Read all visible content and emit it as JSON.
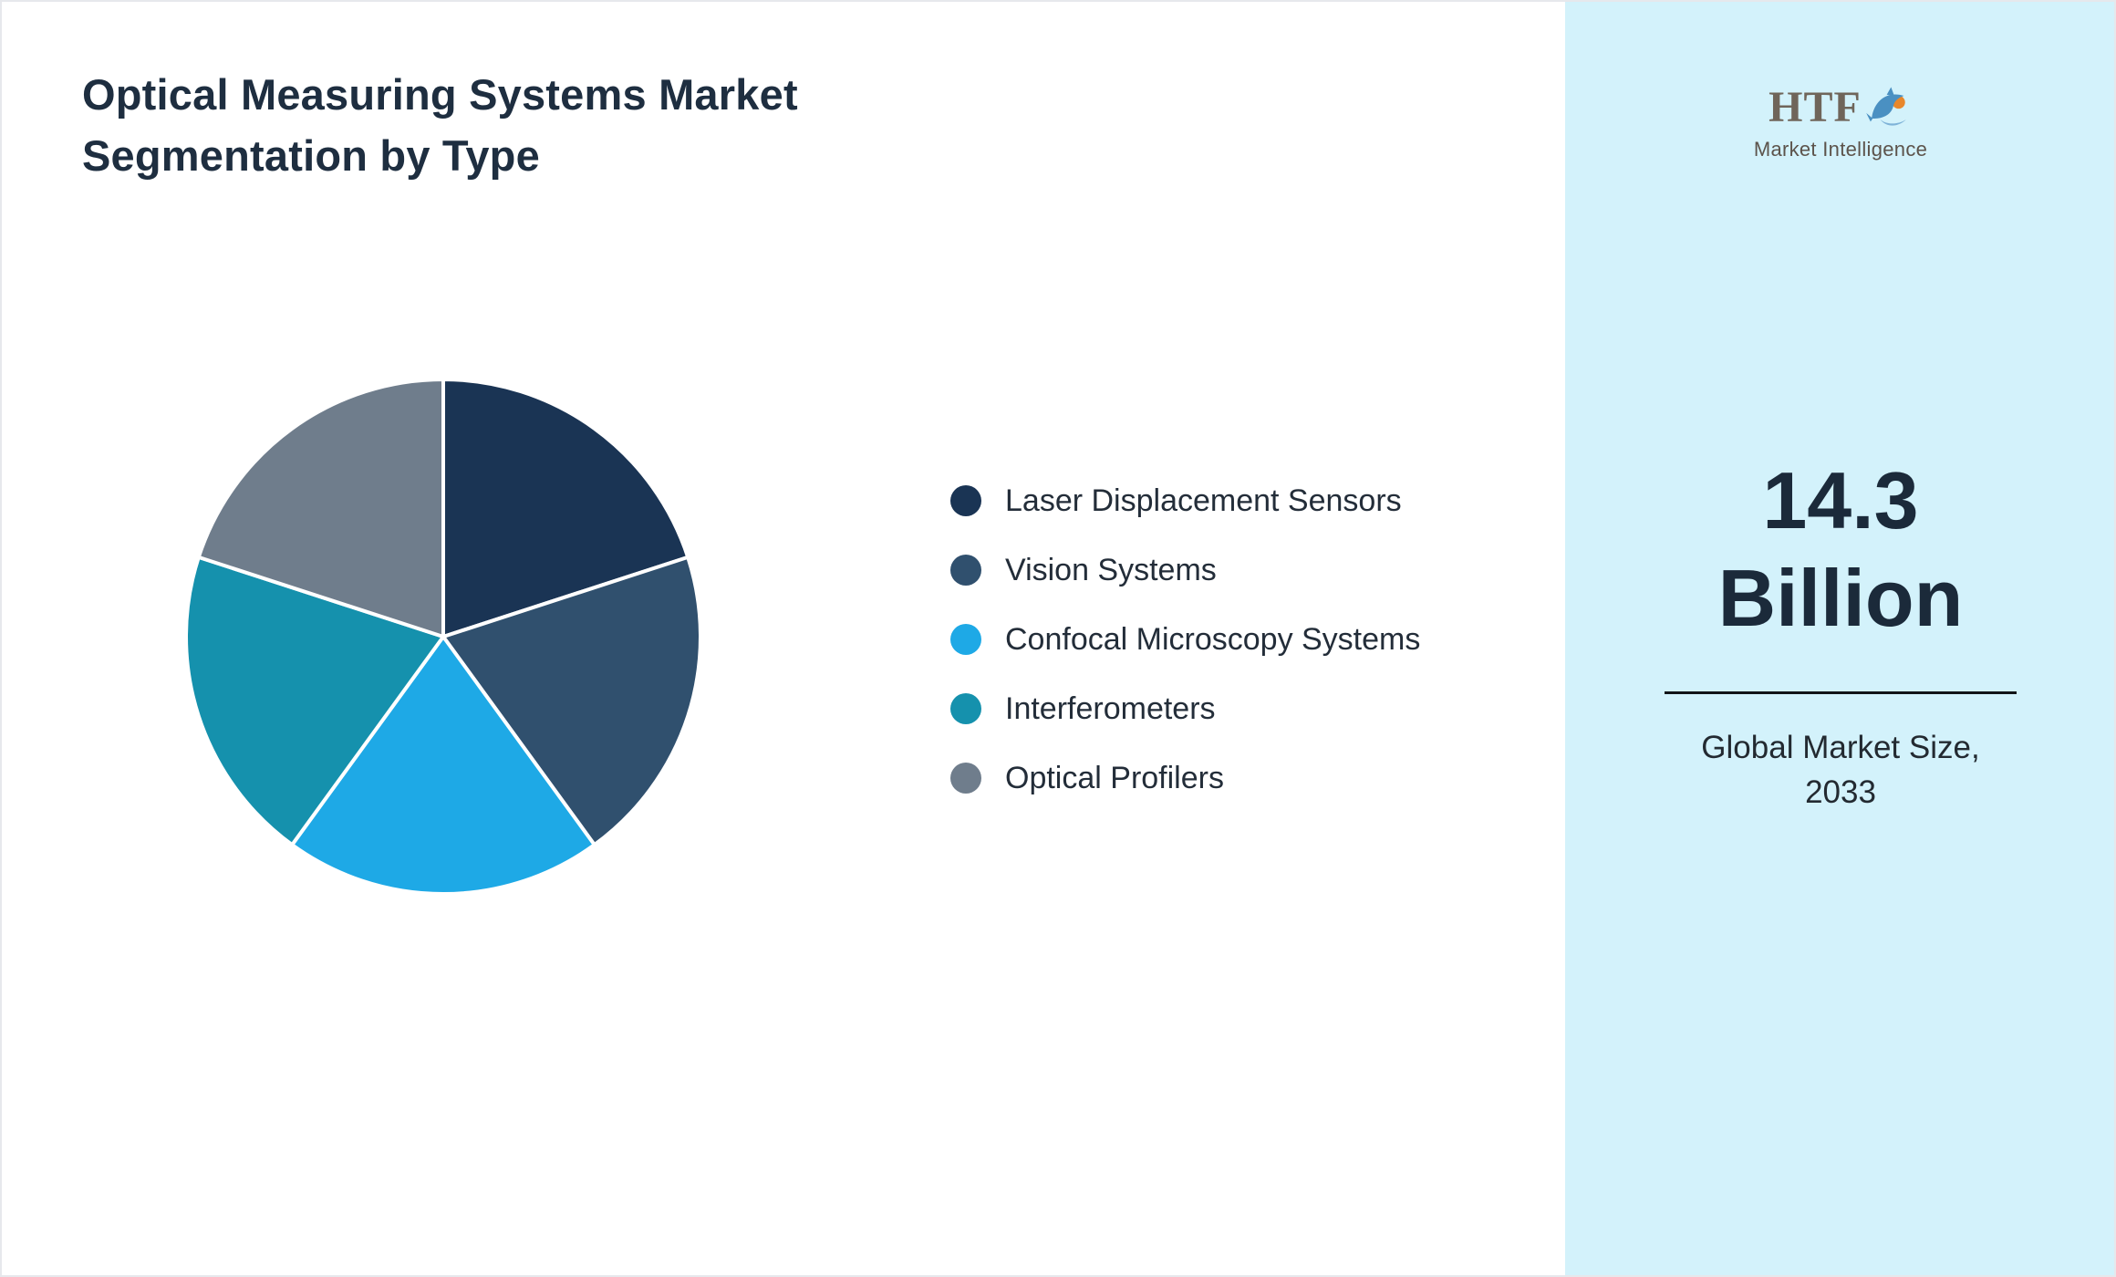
{
  "page": {
    "title_line1": "Optical Measuring Systems Market",
    "title_line2": "Segmentation by Type"
  },
  "chart_data": {
    "type": "pie",
    "title": "Optical Measuring Systems Market Segmentation by Type",
    "labels": [
      "Laser Displacement Sensors",
      "Vision Systems",
      "Confocal Microscopy Systems",
      "Interferometers",
      "Optical Profilers"
    ],
    "values": [
      20,
      20,
      20,
      20,
      20
    ],
    "colors": [
      "#1a3454",
      "#30506e",
      "#1ea9e6",
      "#1591ad",
      "#6f7d8c"
    ],
    "start_angle": "top",
    "direction": "clockwise",
    "legend_position": "right",
    "slice_border_color": "#ffffff"
  },
  "sidebar": {
    "background": "#d3f2fb",
    "logo_text": "HTF",
    "logo_subtext": "Market Intelligence",
    "value_line1": "14.3",
    "value_line2": "Billion",
    "caption_line1": "Global Market Size,",
    "caption_line2": "2033"
  }
}
